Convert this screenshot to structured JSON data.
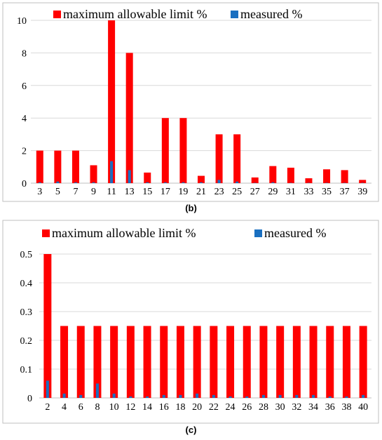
{
  "chart_data": [
    {
      "type": "bar",
      "caption": "(b)",
      "legend_position": "top",
      "grid": true,
      "ylim": [
        0,
        10
      ],
      "yticks": [
        "0",
        "2",
        "4",
        "6",
        "8",
        "10"
      ],
      "categories": [
        "3",
        "5",
        "7",
        "9",
        "11",
        "13",
        "15",
        "17",
        "19",
        "21",
        "23",
        "25",
        "27",
        "29",
        "31",
        "33",
        "35",
        "37",
        "39"
      ],
      "series": [
        {
          "name": "maximum allowable limit %",
          "color": "#ff0000",
          "values": [
            2,
            2,
            2,
            1.1,
            10,
            8,
            0.65,
            4,
            4,
            0.45,
            3,
            3,
            0.35,
            1.05,
            0.95,
            0.3,
            0.85,
            0.8,
            0.2
          ]
        },
        {
          "name": "measured %",
          "color": "#1a6fc0",
          "values": [
            0.05,
            0.1,
            0.05,
            0.05,
            1.35,
            0.8,
            0.05,
            0.05,
            0.05,
            0.05,
            0.2,
            0.1,
            0.02,
            0.05,
            0.02,
            0.02,
            0.02,
            0.02,
            0.02
          ]
        }
      ]
    },
    {
      "type": "bar",
      "caption": "(c)",
      "legend_position": "top",
      "grid": true,
      "ylim": [
        0,
        0.5
      ],
      "yticks": [
        "0",
        "0.1",
        "0.2",
        "0.3",
        "0.4",
        "0.5"
      ],
      "categories": [
        "2",
        "4",
        "6",
        "8",
        "10",
        "12",
        "14",
        "16",
        "18",
        "20",
        "22",
        "24",
        "26",
        "28",
        "30",
        "32",
        "34",
        "36",
        "38",
        "40"
      ],
      "series": [
        {
          "name": "maximum allowable limit %",
          "color": "#ff0000",
          "values": [
            0.5,
            0.25,
            0.25,
            0.25,
            0.25,
            0.25,
            0.25,
            0.25,
            0.25,
            0.25,
            0.25,
            0.25,
            0.25,
            0.25,
            0.25,
            0.25,
            0.25,
            0.25,
            0.25,
            0.25
          ]
        },
        {
          "name": "measured %",
          "color": "#1a6fc0",
          "values": [
            0.06,
            0.015,
            0.01,
            0.05,
            0.015,
            0.005,
            0.005,
            0.01,
            0.01,
            0.015,
            0.01,
            0.005,
            0.005,
            0.01,
            0.01,
            0.01,
            0.01,
            0.005,
            0.005,
            0.01
          ]
        }
      ]
    }
  ]
}
